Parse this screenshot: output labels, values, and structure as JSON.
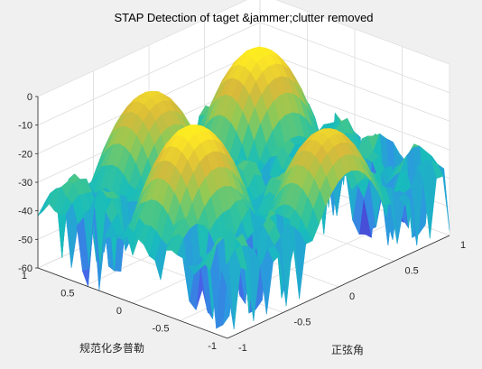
{
  "chart_data": {
    "type": "surface",
    "title": "STAP Detection of taget &jammer;clutter removed",
    "xlabel": "正弦角",
    "ylabel": "规范化多普勒",
    "zlabel": "",
    "xlim": [
      -1,
      1
    ],
    "ylim": [
      -1,
      1
    ],
    "zlim": [
      -60,
      0
    ],
    "x_ticks": [
      "-1",
      "-0.5",
      "0",
      "0.5",
      "1"
    ],
    "y_ticks": [
      "-1",
      "-0.5",
      "0",
      "0.5",
      "1"
    ],
    "z_ticks": [
      "0",
      "-10",
      "-20",
      "-30",
      "-40",
      "-50",
      "-60"
    ],
    "grid": true,
    "colormap": "parula",
    "colormap_stops": [
      "#3e26a8",
      "#4a5ce8",
      "#2d97e0",
      "#18bcbd",
      "#3fc58f",
      "#94c954",
      "#d9ba3a",
      "#fde725",
      "#f9fb0e"
    ],
    "peaks": [
      {
        "x": 0.55,
        "y": 0.5,
        "z": -5
      },
      {
        "x": -0.55,
        "y": -0.1,
        "z": -5
      },
      {
        "x": -0.2,
        "y": 0.75,
        "z": -10
      },
      {
        "x": 0.1,
        "y": -0.75,
        "z": -10
      }
    ],
    "noise_floor_db": [
      -60,
      -33
    ]
  }
}
